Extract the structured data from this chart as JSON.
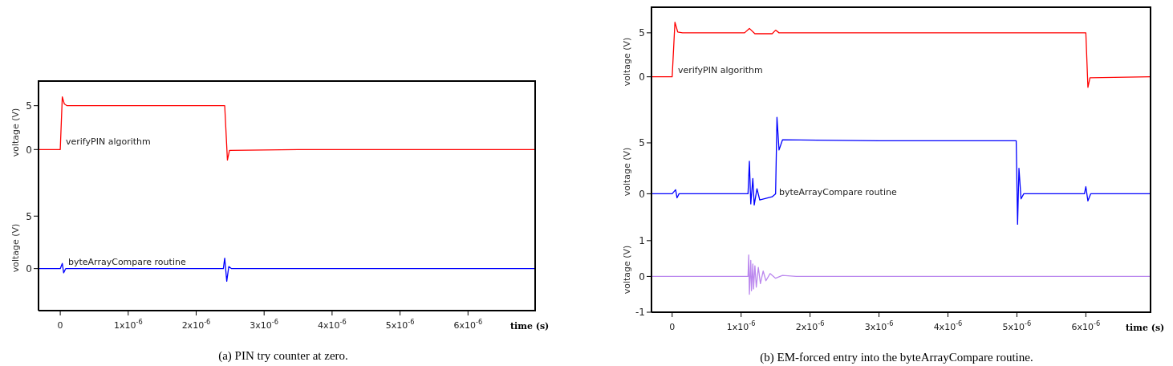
{
  "chart_data": [
    {
      "type": "line",
      "ylabel": "voltage (V)",
      "xlim": [
        -3.2e-07,
        7e-06
      ],
      "ylim": [
        -4,
        7.9
      ],
      "yticks": [
        0,
        5
      ],
      "tick_labels": "y",
      "series": [
        {
          "color": "#ff0000",
          "x": [
            -3.2e-07,
            0,
            3e-08,
            6e-08,
            1e-07,
            1.2e-06,
            2.42e-06,
            2.46e-06,
            2.49e-06,
            3.5e-06,
            7e-06
          ],
          "values": [
            0,
            0,
            6.0,
            5.2,
            5.0,
            5.0,
            5.0,
            -1.2,
            -0.1,
            0,
            0
          ]
        }
      ],
      "annotations": [
        "verifyPIN algorithm"
      ]
    },
    {
      "type": "line",
      "ylabel": "voltage (V)",
      "xlabel": "time (s)",
      "xlim": [
        -3.2e-07,
        7e-06
      ],
      "ylim": [
        -4,
        8
      ],
      "yticks": [
        0,
        5
      ],
      "xticks": [
        0,
        {
          "value": 1e-06,
          "label": "1x10$^{-6}$"
        },
        {
          "value": 2e-06,
          "label": "2x10$^{-6}$"
        },
        {
          "value": 3e-06,
          "label": "3x10$^{-6}$"
        },
        {
          "value": 4e-06,
          "label": "4x10$^{-6}$"
        },
        {
          "value": 5e-06,
          "label": "5x10$^{-6}$"
        },
        {
          "value": 6e-06,
          "label": "6x10$^{-6}$"
        }
      ],
      "series": [
        {
          "color": "#0000ff",
          "x": [
            -3.2e-07,
            0,
            3e-08,
            5e-08,
            8e-08,
            2.4e-06,
            2.42e-06,
            2.45e-06,
            2.48e-06,
            2.52e-06,
            7e-06
          ],
          "values": [
            0,
            0,
            0.5,
            -0.4,
            0,
            0,
            1.0,
            -1.2,
            0.2,
            0,
            0
          ]
        }
      ],
      "annotations": [
        "byteArrayCompare routine",
        "(a) PIN try counter at zero."
      ]
    },
    {
      "type": "line",
      "ylabel": "voltage (V)",
      "xlim": [
        -3e-07,
        6.95e-06
      ],
      "ylim": [
        -4.5,
        8
      ],
      "yticks": [
        0,
        5
      ],
      "tick_labels": "y",
      "series": [
        {
          "color": "#ff0000",
          "x": [
            -3e-07,
            0,
            4e-08,
            8e-08,
            1.5e-07,
            1.05e-06,
            1.12e-06,
            1.2e-06,
            1.45e-06,
            1.5e-06,
            1.55e-06,
            4.9e-06,
            6e-06,
            6.03e-06,
            6.06e-06,
            6.95e-06
          ],
          "values": [
            0,
            0,
            6.2,
            5.1,
            5.0,
            5.0,
            5.5,
            4.9,
            4.9,
            5.3,
            5.0,
            5.0,
            5.0,
            -1.2,
            -0.1,
            0
          ]
        }
      ],
      "annotations": [
        "verifyPIN algorithm"
      ]
    },
    {
      "type": "line",
      "ylabel": "voltage (V)",
      "xlim": [
        -3e-07,
        6.95e-06
      ],
      "ylim": [
        -3.2,
        7.6
      ],
      "yticks": [
        0,
        5
      ],
      "tick_labels": "y",
      "series": [
        {
          "color": "#0000ff",
          "x": [
            -3e-07,
            0,
            5e-08,
            7e-08,
            1e-07,
            1.1e-06,
            1.12e-06,
            1.14e-06,
            1.17e-06,
            1.19e-06,
            1.23e-06,
            1.27e-06,
            1.45e-06,
            1.5e-06,
            1.52e-06,
            1.55e-06,
            1.6e-06,
            3e-06,
            4.99e-06,
            5.01e-06,
            5.03e-06,
            5.06e-06,
            5.1e-06,
            5.98e-06,
            6e-06,
            6.03e-06,
            6.07e-06,
            6.95e-06
          ],
          "values": [
            0,
            0,
            0.4,
            -0.4,
            0,
            0,
            3.2,
            -1.0,
            1.5,
            -1.1,
            0.5,
            -0.6,
            -0.3,
            0,
            7.5,
            4.3,
            5.3,
            5.2,
            5.2,
            -3.0,
            2.5,
            -0.5,
            0,
            0,
            0.7,
            -0.7,
            0,
            0
          ]
        }
      ],
      "annotations": [
        "byteArrayCompare routine"
      ]
    },
    {
      "type": "line",
      "ylabel": "voltage (V)",
      "xlabel": "time (s)",
      "xlim": [
        -3e-07,
        6.95e-06
      ],
      "ylim": [
        -1,
        1.4
      ],
      "yticks": [
        -1,
        0,
        1
      ],
      "xticks": [
        0,
        {
          "value": 1e-06,
          "label": "1x10$^{-6}$"
        },
        {
          "value": 2e-06,
          "label": "2x10$^{-6}$"
        },
        {
          "value": 3e-06,
          "label": "3x10$^{-6}$"
        },
        {
          "value": 4e-06,
          "label": "4x10$^{-6}$"
        },
        {
          "value": 5e-06,
          "label": "5x10$^{-6}$"
        },
        {
          "value": 6e-06,
          "label": "6x10$^{-6}$"
        }
      ],
      "series": [
        {
          "color": "#bb88ee",
          "x": [
            -3e-07,
            1.1e-06,
            1.11e-06,
            1.12e-06,
            1.14e-06,
            1.15e-06,
            1.17e-06,
            1.18e-06,
            1.2e-06,
            1.22e-06,
            1.25e-06,
            1.28e-06,
            1.32e-06,
            1.36e-06,
            1.42e-06,
            1.5e-06,
            1.6e-06,
            1.8e-06,
            6.95e-06
          ],
          "values": [
            0,
            0,
            0.6,
            -0.5,
            0.45,
            -0.4,
            0.35,
            -0.35,
            0.3,
            -0.3,
            0.25,
            -0.2,
            0.15,
            -0.12,
            0.08,
            -0.05,
            0.03,
            0,
            0
          ]
        }
      ],
      "annotations": [
        "(b) EM-forced entry into the byteArrayCompare routine."
      ]
    }
  ]
}
